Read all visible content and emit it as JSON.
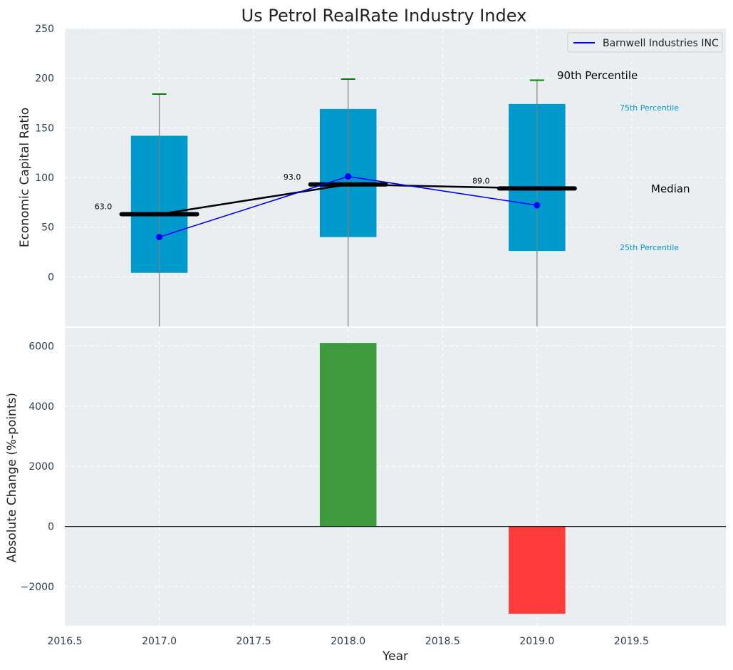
{
  "chart_data": [
    {
      "type": "box-percentile",
      "title": "Us Petrol RealRate Industry Index",
      "ylabel": "Economic Capital Ratio",
      "ylim": [
        -50,
        250
      ],
      "yticks": [
        0,
        50,
        100,
        150,
        200,
        250
      ],
      "xlim": [
        2016.5,
        2020.0
      ],
      "grid": true,
      "legend": {
        "position": "top-right",
        "entries": [
          "Barnwell Industries INC"
        ]
      },
      "years": [
        2017,
        2018,
        2019
      ],
      "p25": [
        4,
        40,
        26
      ],
      "p75": [
        142,
        169,
        174
      ],
      "p90": [
        184,
        199,
        198
      ],
      "median": [
        63.0,
        93.0,
        89.0
      ],
      "median_labels": [
        "63.0",
        "93.0",
        "89.0"
      ],
      "company": {
        "name": "Barnwell Industries INC",
        "values": [
          40,
          101,
          72
        ]
      },
      "annotations": {
        "p90": "90th Percentile",
        "p75": "75th Percentile",
        "median": "Median",
        "p25": "25th Percentile"
      }
    },
    {
      "type": "bar",
      "ylabel": "Absolute Change (%-points)",
      "xlabel": "Year",
      "ylim": [
        -3300,
        6600
      ],
      "yticks": [
        -2000,
        0,
        2000,
        4000,
        6000
      ],
      "ytick_labels": [
        "−2000",
        "0",
        "2000",
        "4000",
        "6000"
      ],
      "xlim": [
        2016.5,
        2020.0
      ],
      "xticks": [
        2016.5,
        2017.0,
        2017.5,
        2018.0,
        2018.5,
        2019.0,
        2019.5
      ],
      "xtick_labels": [
        "2016.5",
        "2017.0",
        "2017.5",
        "2018.0",
        "2018.5",
        "2019.0",
        "2019.5"
      ],
      "categories": [
        2018,
        2019
      ],
      "values": [
        6100,
        -2900
      ]
    }
  ],
  "colors": {
    "panel_bg": "#eaeef0",
    "box": "#0099cc",
    "whisker": "#808080",
    "cap": "#008000",
    "median": "#000000",
    "company_line": "#0000ff",
    "positive_bar": "#3d9b3d",
    "negative_bar": "#ff3c3c",
    "label_blue": "#0099cc",
    "tick_text": "#2f3e4e"
  }
}
